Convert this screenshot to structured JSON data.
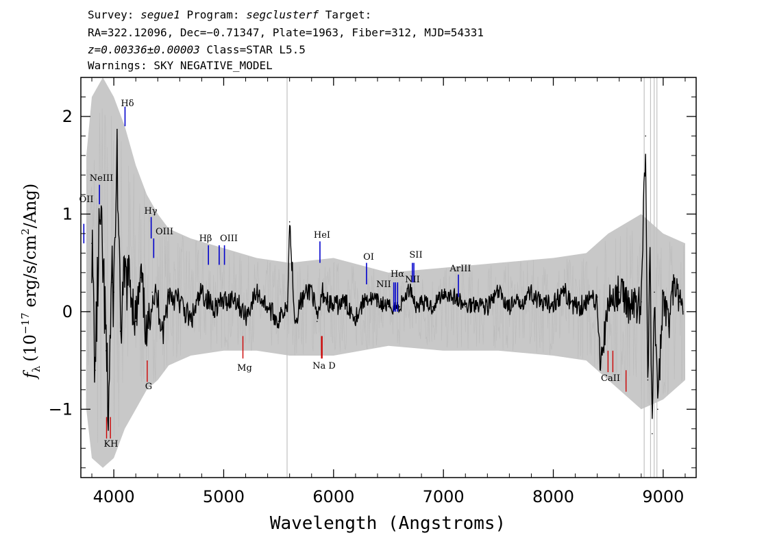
{
  "header": {
    "line1": {
      "survey_label": "Survey: ",
      "survey": "segue1",
      "program_label": " Program: ",
      "program": "segclusterf",
      "target_label": " Target:"
    },
    "line2": "RA=322.12096, Dec=−0.71347, Plate=1963, Fiber=312, MJD=54331",
    "line3": {
      "redshift": "z=0.00336±0.00003",
      "class": " Class=STAR L5.5"
    },
    "line4": "Warnings: SKY NEGATIVE_MODEL"
  },
  "chart_data": {
    "type": "line",
    "xlabel": "Wavelength (Angstroms)",
    "ylabel_parts": {
      "f": "f",
      "sub": "λ",
      "open": "(10",
      "exp": "−17",
      "mid": " erg/s/cm",
      "exp2": "2",
      "close": "/Ang)"
    },
    "xlim": [
      3700,
      9300
    ],
    "ylim": [
      -1.7,
      2.4
    ],
    "xticks": [
      4000,
      5000,
      6000,
      7000,
      8000,
      9000
    ],
    "yticks": [
      -1,
      0,
      1,
      2
    ],
    "ytick_labels": [
      "−1",
      "0",
      "1",
      "2"
    ],
    "grid": false,
    "colors": {
      "flux": "#000000",
      "error_band": "#c8c8c8",
      "emission_line": "#0000cc",
      "absorption_line": "#cc0000"
    },
    "series": [
      {
        "name": "",
        "x": [
          3800,
          3830,
          3870,
          3900,
          3930,
          3950,
          3980,
          4000,
          4030,
          4060,
          4100,
          4150,
          4200,
          4250,
          4300,
          4350,
          4400,
          4450,
          4500,
          4600,
          4700,
          4800,
          4900,
          5000,
          5100,
          5200,
          5300,
          5400,
          5500,
          5580,
          5600,
          5650,
          5700,
          5800,
          5850,
          5900,
          5950,
          6000,
          6100,
          6200,
          6300,
          6400,
          6500,
          6600,
          6700,
          6750,
          6800,
          6900,
          7000,
          7100,
          7200,
          7300,
          7400,
          7500,
          7600,
          7700,
          7800,
          7900,
          8000,
          8100,
          8200,
          8300,
          8400,
          8430,
          8500,
          8600,
          8700,
          8800,
          8840,
          8860,
          8880,
          8900,
          8920,
          8950,
          9000,
          9050,
          9100,
          9150,
          9180
        ],
        "y": [
          0.7,
          -0.6,
          0.9,
          0.5,
          -0.4,
          -1.05,
          0.3,
          0.2,
          1.65,
          -0.2,
          0.35,
          0.3,
          -0.1,
          0.35,
          -0.3,
          0.2,
          0.1,
          -0.2,
          0.2,
          0.1,
          -0.1,
          0.2,
          0.05,
          0.1,
          0.15,
          -0.05,
          0.2,
          0.05,
          -0.1,
          0.1,
          0.92,
          -0.1,
          0.1,
          0.25,
          -0.1,
          0.2,
          0.1,
          0.05,
          0.1,
          -0.05,
          0.15,
          0.1,
          0.05,
          0.05,
          0.25,
          0.05,
          0.1,
          0.05,
          0.2,
          0.15,
          0.05,
          0.1,
          0.05,
          0.2,
          0.05,
          0.1,
          0.2,
          0.05,
          0.1,
          0.2,
          0.05,
          0.1,
          0.15,
          -0.6,
          0.1,
          0.2,
          0.05,
          0.1,
          1.8,
          -0.7,
          0.5,
          -1.25,
          0.2,
          -1.0,
          0.2,
          -0.15,
          0.3,
          0.1,
          0.0
        ]
      }
    ],
    "error_band": {
      "x": [
        3750,
        3800,
        3900,
        4000,
        4100,
        4200,
        4300,
        4400,
        4500,
        4700,
        5000,
        5300,
        5600,
        6000,
        6500,
        7000,
        7500,
        8000,
        8300,
        8500,
        8800,
        9000,
        9200
      ],
      "hi": [
        1.6,
        2.2,
        2.4,
        2.2,
        1.9,
        1.5,
        1.2,
        1.0,
        0.85,
        0.75,
        0.65,
        0.55,
        0.5,
        0.55,
        0.4,
        0.45,
        0.5,
        0.55,
        0.6,
        0.8,
        1.0,
        0.8,
        0.7
      ],
      "lo": [
        -1.0,
        -1.5,
        -1.6,
        -1.5,
        -1.2,
        -1.0,
        -0.8,
        -0.7,
        -0.55,
        -0.45,
        -0.4,
        -0.4,
        -0.45,
        -0.45,
        -0.35,
        -0.4,
        -0.4,
        -0.45,
        -0.5,
        -0.7,
        -1.0,
        -0.9,
        -0.7
      ]
    },
    "sky_lines": [
      5577,
      8827,
      8885,
      8918,
      8943
    ],
    "emission_lines": [
      {
        "label": "OII",
        "wavelength": 3727
      },
      {
        "label": "NeIII",
        "wavelength": 3869
      },
      {
        "label": "Hδ",
        "wavelength": 4102
      },
      {
        "label": "Hγ",
        "wavelength": 4340
      },
      {
        "label": "OIII",
        "wavelength": 4363
      },
      {
        "label": "Hβ",
        "wavelength": 4861
      },
      {
        "label": "OIII",
        "wavelength": 4959
      },
      {
        "label": "OIII",
        "wavelength": 5007
      },
      {
        "label": "HeI",
        "wavelength": 5876
      },
      {
        "label": "OI",
        "wavelength": 6300
      },
      {
        "label": "NII",
        "wavelength": 6548
      },
      {
        "label": "Hα",
        "wavelength": 6563
      },
      {
        "label": "NII",
        "wavelength": 6583
      },
      {
        "label": "SII",
        "wavelength": 6717
      },
      {
        "label": "SII",
        "wavelength": 6731
      },
      {
        "label": "ArIII",
        "wavelength": 7136
      }
    ],
    "absorption_lines": [
      {
        "label": "K",
        "wavelength": 3934
      },
      {
        "label": "H",
        "wavelength": 3969
      },
      {
        "label": "G",
        "wavelength": 4304
      },
      {
        "label": "Mg",
        "wavelength": 5175
      },
      {
        "label": "Na",
        "wavelength": 5890
      },
      {
        "label": "D",
        "wavelength": 5896
      },
      {
        "label": "CaII",
        "wavelength": 8498
      },
      {
        "label": "CaII",
        "wavelength": 8542
      },
      {
        "label": "CaII",
        "wavelength": 8662
      }
    ],
    "line_label_texts": {
      "OII": "OII",
      "NeIII": "NeIII",
      "Hdelta": "Hδ",
      "Hgamma": "Hγ",
      "OIII_a": "OIII",
      "Hbeta": "Hβ",
      "OIII_b": "OIII",
      "HeI": "HeI",
      "OI": "OI",
      "NII_a": "NII",
      "Halpha": "Hα",
      "NII_b": "NII",
      "SII": "SII",
      "ArIII": "ArIII",
      "KH": "KH",
      "G": "G",
      "Mg": "Mg",
      "NaD": "Na D",
      "CaII": "CaII"
    }
  }
}
